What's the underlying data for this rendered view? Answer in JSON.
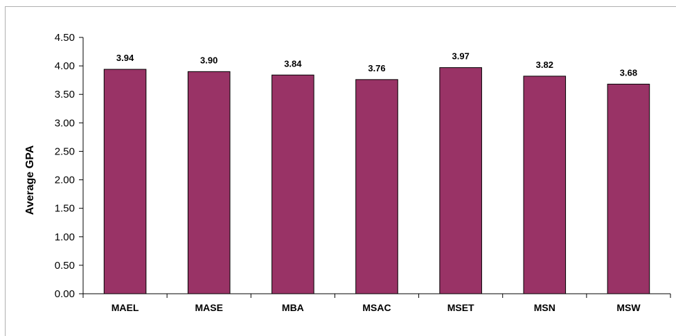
{
  "chart_data": {
    "type": "bar",
    "categories": [
      "MAEL",
      "MASE",
      "MBA",
      "MSAC",
      "MSET",
      "MSN",
      "MSW"
    ],
    "values": [
      3.94,
      3.9,
      3.84,
      3.76,
      3.97,
      3.82,
      3.68
    ],
    "data_labels": [
      "3.94",
      "3.90",
      "3.84",
      "3.76",
      "3.97",
      "3.82",
      "3.68"
    ],
    "ylabel": "Average GPA",
    "ylim": [
      0,
      4.5
    ],
    "yticks": [
      "0.00",
      "0.50",
      "1.00",
      "1.50",
      "2.00",
      "2.50",
      "3.00",
      "3.50",
      "4.00",
      "4.50"
    ],
    "bar_color": "#993366",
    "grid": false,
    "legend": "none"
  }
}
